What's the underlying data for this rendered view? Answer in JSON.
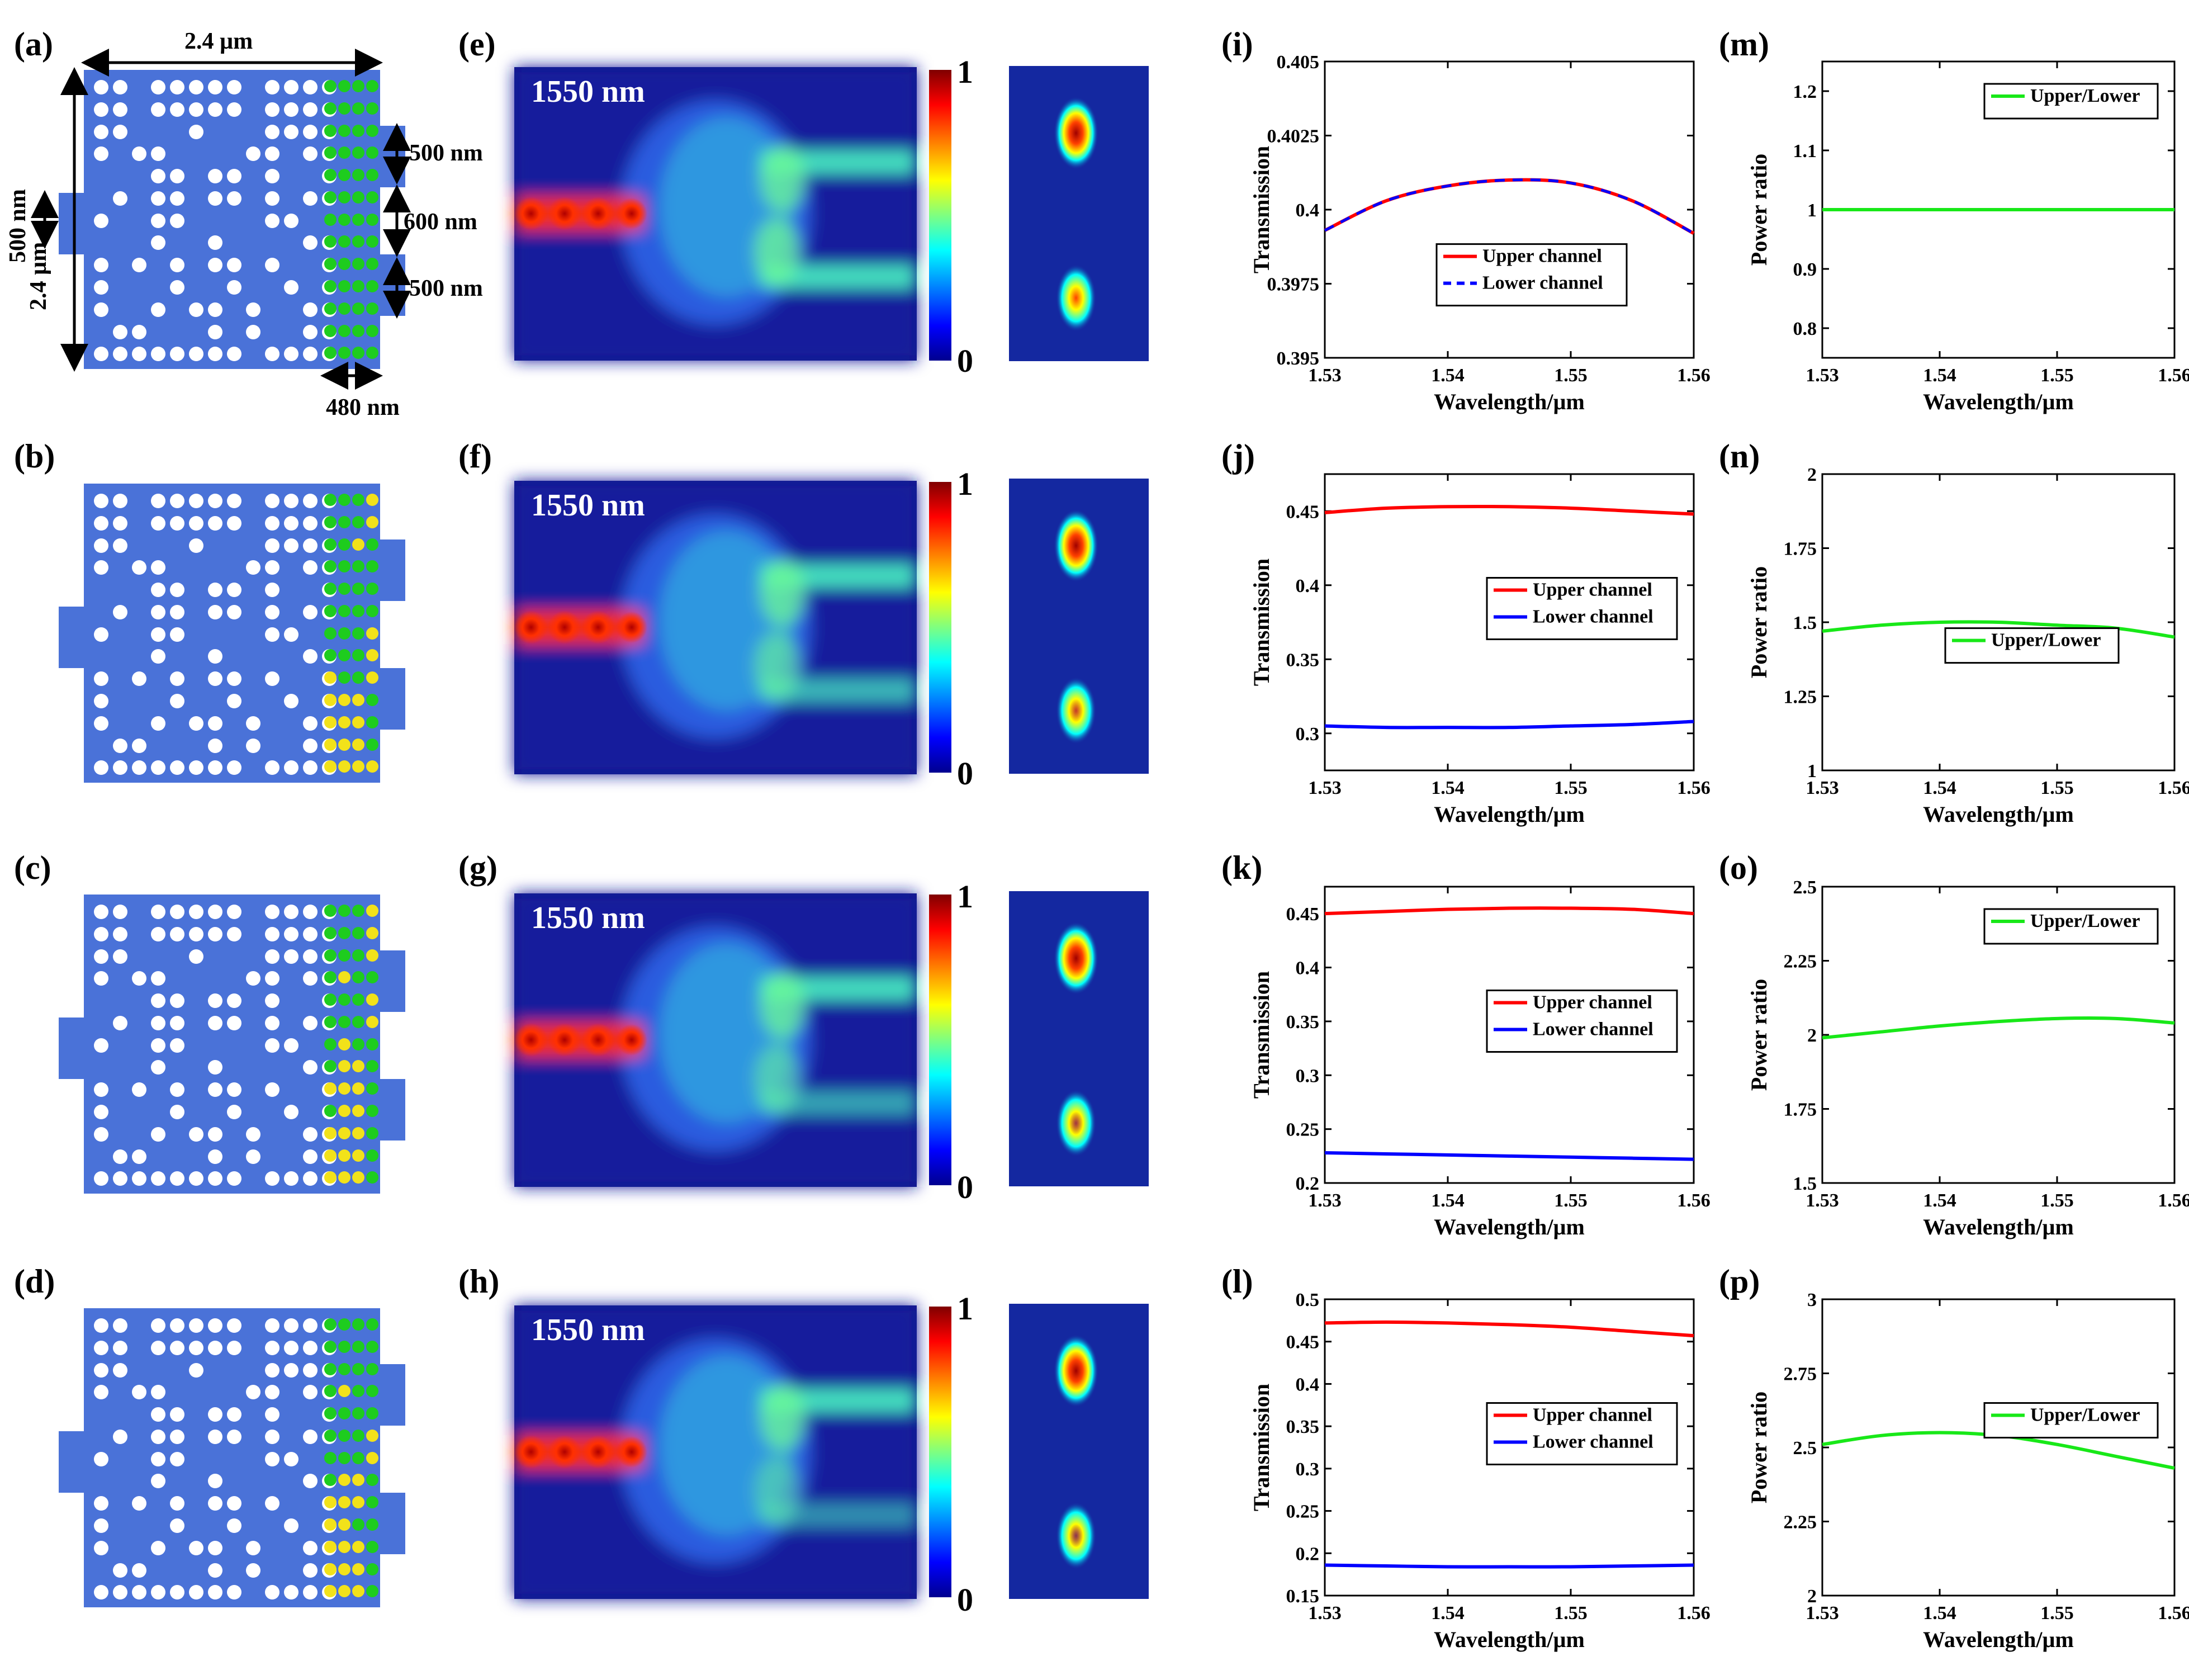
{
  "panel_labels": [
    "(a)",
    "(b)",
    "(c)",
    "(d)",
    "(e)",
    "(f)",
    "(g)",
    "(h)",
    "(i)",
    "(j)",
    "(k)",
    "(l)",
    "(m)",
    "(n)",
    "(o)",
    "(p)"
  ],
  "device": {
    "dim_width": "2.4 µm",
    "dim_height": "2.4 µm",
    "dim_input": "500 nm",
    "dim_out_upper": "500 nm",
    "dim_gap": "600 nm",
    "dim_out_lower": "500 nm",
    "dim_tuning_region": "480 nm",
    "colors": {
      "substrate": "#4a72d8",
      "hole": "#ffffff",
      "tuning_off": "#1ecc1e",
      "tuning_on": "#f2e21a"
    }
  },
  "field_maps": {
    "wavelength_label": "1550 nm",
    "colorbar_max": "1",
    "colorbar_min": "0"
  },
  "chart_data": [
    {
      "id": "i",
      "type": "line",
      "xlabel": "Wavelength/µm",
      "ylabel": "Transmission",
      "xlim": [
        1.53,
        1.56
      ],
      "xticks": [
        "1.53",
        "1.54",
        "1.55",
        "1.56"
      ],
      "ylim": [
        0.395,
        0.405
      ],
      "yticks": [
        "0.395",
        "0.3975",
        "0.4",
        "0.4025",
        "0.405"
      ],
      "x": [
        1.53,
        1.535,
        1.54,
        1.545,
        1.55,
        1.555,
        1.56
      ],
      "series": [
        {
          "name": "Upper channel",
          "color": "#ff0000",
          "dash": false,
          "values": [
            0.3993,
            0.4003,
            0.4008,
            0.401,
            0.4009,
            0.4003,
            0.3992
          ]
        },
        {
          "name": "Lower channel",
          "color": "#0000ff",
          "dash": true,
          "values": [
            0.3993,
            0.4003,
            0.4008,
            0.401,
            0.4009,
            0.4003,
            0.3992
          ]
        }
      ],
      "legend": "bottom-center"
    },
    {
      "id": "j",
      "type": "line",
      "xlabel": "Wavelength/µm",
      "ylabel": "Transmission",
      "xlim": [
        1.53,
        1.56
      ],
      "xticks": [
        "1.53",
        "1.54",
        "1.55",
        "1.56"
      ],
      "ylim": [
        0.275,
        0.475
      ],
      "yticks": [
        "0.3",
        "0.35",
        "0.4",
        "0.45"
      ],
      "x": [
        1.53,
        1.535,
        1.54,
        1.545,
        1.55,
        1.555,
        1.56
      ],
      "series": [
        {
          "name": "Upper channel",
          "color": "#ff0000",
          "dash": false,
          "values": [
            0.449,
            0.452,
            0.453,
            0.453,
            0.452,
            0.45,
            0.448
          ]
        },
        {
          "name": "Lower channel",
          "color": "#0000ff",
          "dash": false,
          "values": [
            0.305,
            0.304,
            0.304,
            0.304,
            0.305,
            0.306,
            0.308
          ]
        }
      ],
      "legend": "center-right"
    },
    {
      "id": "k",
      "type": "line",
      "xlabel": "Wavelength/µm",
      "ylabel": "Transmission",
      "xlim": [
        1.53,
        1.56
      ],
      "xticks": [
        "1.53",
        "1.54",
        "1.55",
        "1.56"
      ],
      "ylim": [
        0.2,
        0.475
      ],
      "yticks": [
        "0.2",
        "0.25",
        "0.3",
        "0.35",
        "0.4",
        "0.45"
      ],
      "x": [
        1.53,
        1.535,
        1.54,
        1.545,
        1.55,
        1.555,
        1.56
      ],
      "series": [
        {
          "name": "Upper channel",
          "color": "#ff0000",
          "dash": false,
          "values": [
            0.45,
            0.452,
            0.454,
            0.455,
            0.455,
            0.454,
            0.45
          ]
        },
        {
          "name": "Lower channel",
          "color": "#0000ff",
          "dash": false,
          "values": [
            0.228,
            0.227,
            0.226,
            0.225,
            0.224,
            0.223,
            0.222
          ]
        }
      ],
      "legend": "center-right"
    },
    {
      "id": "l",
      "type": "line",
      "xlabel": "Wavelength/µm",
      "ylabel": "Transmission",
      "xlim": [
        1.53,
        1.56
      ],
      "xticks": [
        "1.53",
        "1.54",
        "1.55",
        "1.56"
      ],
      "ylim": [
        0.15,
        0.5
      ],
      "yticks": [
        "0.15",
        "0.2",
        "0.25",
        "0.3",
        "0.35",
        "0.4",
        "0.45",
        "0.5"
      ],
      "x": [
        1.53,
        1.535,
        1.54,
        1.545,
        1.55,
        1.555,
        1.56
      ],
      "series": [
        {
          "name": "Upper channel",
          "color": "#ff0000",
          "dash": false,
          "values": [
            0.472,
            0.473,
            0.472,
            0.47,
            0.467,
            0.462,
            0.457
          ]
        },
        {
          "name": "Lower channel",
          "color": "#0000ff",
          "dash": false,
          "values": [
            0.186,
            0.185,
            0.184,
            0.184,
            0.184,
            0.185,
            0.186
          ]
        }
      ],
      "legend": "center-right"
    },
    {
      "id": "m",
      "type": "line",
      "xlabel": "Wavelength/µm",
      "ylabel": "Power ratio",
      "xlim": [
        1.53,
        1.56
      ],
      "xticks": [
        "1.53",
        "1.54",
        "1.55",
        "1.56"
      ],
      "ylim": [
        0.75,
        1.25
      ],
      "yticks": [
        "0.8",
        "0.9",
        "1",
        "1.1",
        "1.2"
      ],
      "x": [
        1.53,
        1.535,
        1.54,
        1.545,
        1.55,
        1.555,
        1.56
      ],
      "series": [
        {
          "name": "Upper/Lower",
          "color": "#18e818",
          "dash": false,
          "values": [
            1,
            1,
            1,
            1,
            1,
            1,
            1
          ]
        }
      ],
      "legend": "top-right"
    },
    {
      "id": "n",
      "type": "line",
      "xlabel": "Wavelength/µm",
      "ylabel": "Power ratio",
      "xlim": [
        1.53,
        1.56
      ],
      "xticks": [
        "1.53",
        "1.54",
        "1.55",
        "1.56"
      ],
      "ylim": [
        1,
        2
      ],
      "yticks": [
        "1",
        "1.25",
        "1.5",
        "1.75",
        "2"
      ],
      "x": [
        1.53,
        1.535,
        1.54,
        1.545,
        1.55,
        1.555,
        1.56
      ],
      "series": [
        {
          "name": "Upper/Lower",
          "color": "#18e818",
          "dash": false,
          "values": [
            1.47,
            1.49,
            1.5,
            1.5,
            1.49,
            1.48,
            1.45
          ]
        }
      ],
      "legend": "center"
    },
    {
      "id": "o",
      "type": "line",
      "xlabel": "Wavelength/µm",
      "ylabel": "Power ratio",
      "xlim": [
        1.53,
        1.56
      ],
      "xticks": [
        "1.53",
        "1.54",
        "1.55",
        "1.56"
      ],
      "ylim": [
        1.5,
        2.5
      ],
      "yticks": [
        "1.5",
        "1.75",
        "2",
        "2.25",
        "2.5"
      ],
      "x": [
        1.53,
        1.535,
        1.54,
        1.545,
        1.55,
        1.555,
        1.56
      ],
      "series": [
        {
          "name": "Upper/Lower",
          "color": "#18e818",
          "dash": false,
          "values": [
            1.99,
            2.01,
            2.03,
            2.045,
            2.055,
            2.055,
            2.04
          ]
        }
      ],
      "legend": "top-right"
    },
    {
      "id": "p",
      "type": "line",
      "xlabel": "Wavelength/µm",
      "ylabel": "Power ratio",
      "xlim": [
        1.53,
        1.56
      ],
      "xticks": [
        "1.53",
        "1.54",
        "1.55",
        "1.56"
      ],
      "ylim": [
        2,
        3
      ],
      "yticks": [
        "2",
        "2.25",
        "2.5",
        "2.75",
        "3"
      ],
      "x": [
        1.53,
        1.535,
        1.54,
        1.545,
        1.55,
        1.555,
        1.56
      ],
      "series": [
        {
          "name": "Upper/Lower",
          "color": "#18e818",
          "dash": false,
          "values": [
            2.51,
            2.54,
            2.55,
            2.54,
            2.51,
            2.47,
            2.43
          ]
        }
      ],
      "legend": "center-right"
    }
  ]
}
